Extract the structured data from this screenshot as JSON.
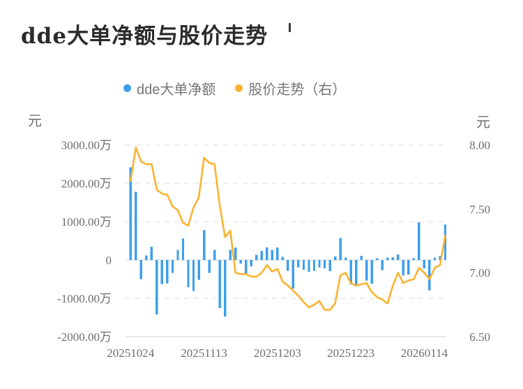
{
  "title": "dde大单净额与股价走势",
  "legend": {
    "items": [
      {
        "label": "dde大单净额",
        "color": "#3d9feb"
      },
      {
        "label": "股价走势（右）",
        "color": "#fbb230"
      }
    ]
  },
  "left_axis": {
    "unit": "元",
    "tick_labels": [
      "3000.00万",
      "2000.00万",
      "1000.00万",
      "0",
      "-1000.00万",
      "-2000.00万"
    ],
    "tick_values_wan": [
      3000,
      2000,
      1000,
      0,
      -1000,
      -2000
    ]
  },
  "right_axis": {
    "unit": "元",
    "tick_labels": [
      "8.00",
      "7.50",
      "7.00",
      "6.50"
    ],
    "tick_values": [
      8.0,
      7.5,
      7.0,
      6.5
    ]
  },
  "x_axis": {
    "tick_labels": [
      "20251024",
      "20251113",
      "20251203",
      "20251223",
      "20260114"
    ],
    "tick_indices": [
      0,
      14,
      28,
      42,
      56
    ]
  },
  "colors": {
    "bar": "#3d9feb",
    "line": "#fbb230",
    "grid_dashed": "#e8e8e8",
    "grid_solid": "#e2e2e2",
    "axis_text": "#6e6e6e",
    "title_text": "#2b2b2b"
  },
  "chart_data": {
    "type": "combo",
    "title": "dde大单净额与股价走势",
    "x_tick_labels": [
      "20251024",
      "20251113",
      "20251203",
      "20251223",
      "20260114"
    ],
    "x_tick_indices": [
      0,
      14,
      28,
      42,
      56
    ],
    "num_points": 61,
    "left_ylim_wan": [
      -2000,
      3000
    ],
    "right_ylim": [
      6.5,
      8.0
    ],
    "grid": "horizontal-dashed",
    "legend_position": "top-center",
    "series": [
      {
        "name": "dde大单净额",
        "type": "bar",
        "yaxis": "left",
        "unit": "万元",
        "values": [
          2420,
          1780,
          -500,
          115,
          345,
          -1415,
          -625,
          -605,
          -340,
          265,
          560,
          -705,
          -805,
          -520,
          780,
          -340,
          265,
          -1250,
          -1470,
          265,
          330,
          -95,
          -365,
          -160,
          140,
          240,
          330,
          265,
          330,
          80,
          -280,
          -745,
          -190,
          -250,
          -310,
          -280,
          -190,
          -215,
          -295,
          90,
          570,
          60,
          -640,
          -675,
          105,
          -535,
          -620,
          45,
          -260,
          60,
          75,
          145,
          -400,
          -380,
          45,
          980,
          -220,
          -790,
          60,
          105,
          930
        ]
      },
      {
        "name": "股价走势（右）",
        "type": "line",
        "yaxis": "right",
        "unit": "元",
        "values": [
          7.72,
          7.98,
          7.87,
          7.85,
          7.85,
          7.65,
          7.62,
          7.61,
          7.52,
          7.49,
          7.39,
          7.37,
          7.51,
          7.59,
          7.9,
          7.86,
          7.85,
          7.53,
          7.28,
          7.33,
          7.0,
          6.99,
          6.99,
          6.97,
          6.97,
          7.0,
          7.06,
          7.01,
          7.03,
          6.93,
          6.9,
          6.86,
          6.82,
          6.77,
          6.73,
          6.75,
          6.78,
          6.71,
          6.71,
          6.76,
          6.98,
          7.0,
          6.92,
          6.9,
          6.91,
          6.92,
          6.85,
          6.81,
          6.79,
          6.76,
          6.9,
          7.0,
          6.92,
          6.94,
          6.95,
          7.04,
          7.0,
          6.95,
          7.04,
          7.06,
          7.29
        ]
      }
    ]
  }
}
